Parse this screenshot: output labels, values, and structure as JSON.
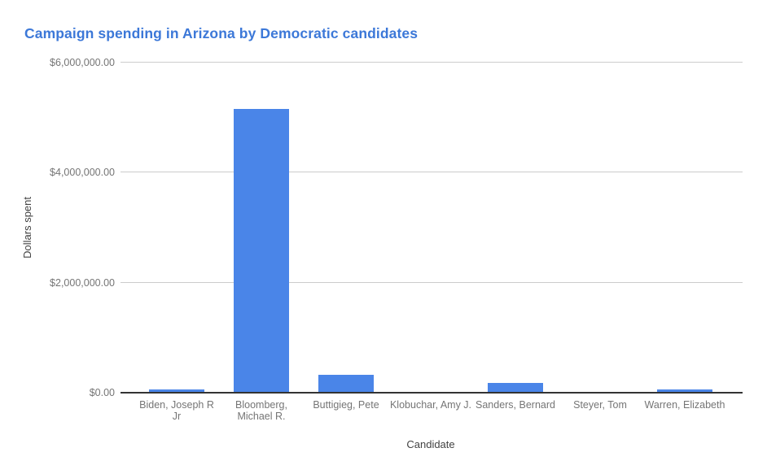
{
  "title": "Campaign spending in Arizona by Democratic candidates",
  "colors": {
    "title": "#3c78d8",
    "bar": "#4a85e8",
    "tick_label": "#757575",
    "axis_title": "#424242",
    "gridline": "#cccccc",
    "baseline": "#333333",
    "background": "#ffffff"
  },
  "chart_data": {
    "type": "bar",
    "title": "Campaign spending in Arizona by Democratic candidates",
    "xlabel": "Candidate",
    "ylabel": "Dollars spent",
    "categories": [
      "Biden, Joseph R Jr",
      "Bloomberg, Michael R.",
      "Buttigieg, Pete",
      "Klobuchar, Amy J.",
      "Sanders, Bernard",
      "Steyer, Tom",
      "Warren, Elizabeth"
    ],
    "values": [
      55000,
      5160000,
      325000,
      0,
      180000,
      0,
      55000
    ],
    "ylim": [
      0,
      6000000
    ],
    "yticks": [
      {
        "value": 0,
        "label": "$0.00"
      },
      {
        "value": 2000000,
        "label": "$2,000,000.00"
      },
      {
        "value": 4000000,
        "label": "$4,000,000.00"
      },
      {
        "value": 6000000,
        "label": "$6,000,000.00"
      }
    ],
    "grid": true,
    "legend": "none",
    "bar_color": "#4a85e8"
  }
}
